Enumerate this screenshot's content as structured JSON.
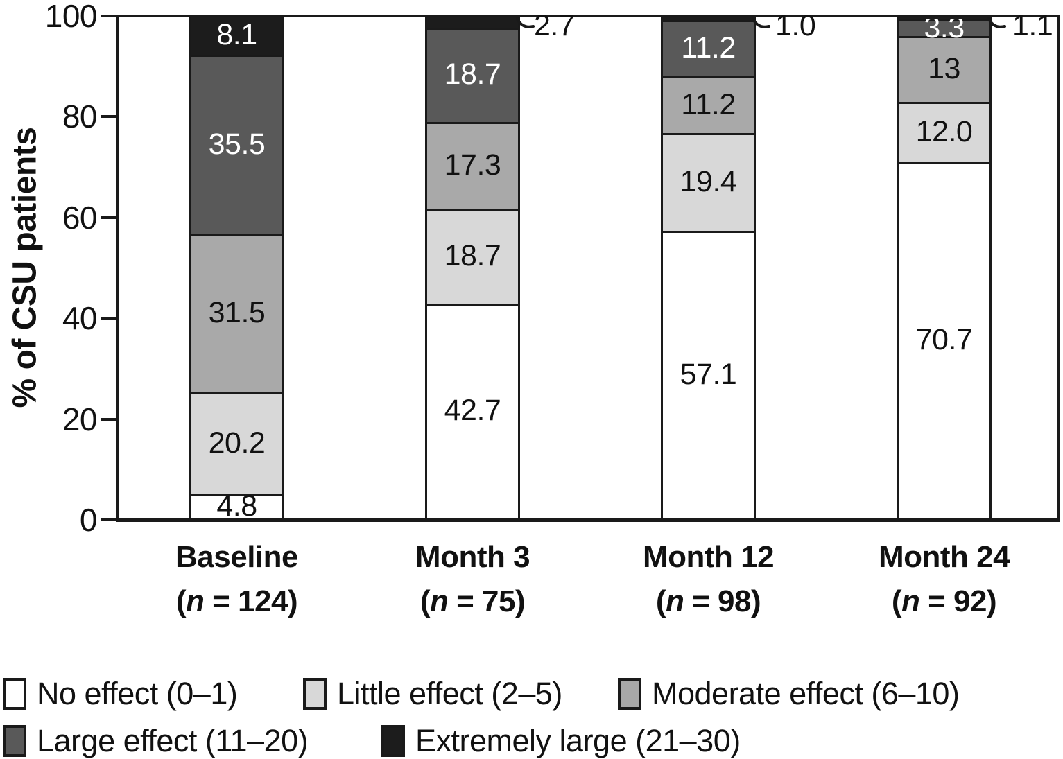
{
  "chart_data": {
    "type": "bar",
    "stacked": true,
    "title": "",
    "xlabel": "",
    "ylabel": "% of CSU patients",
    "ylim": [
      0,
      100
    ],
    "yticks": [
      "0",
      "20",
      "40",
      "60",
      "80",
      "100"
    ],
    "grid": false,
    "legend_position": "bottom-left-two-rows",
    "categories": [
      {
        "label": "Baseline",
        "n": "124"
      },
      {
        "label": "Month 3",
        "n": "75"
      },
      {
        "label": "Month 12",
        "n": "98"
      },
      {
        "label": "Month 24",
        "n": "92"
      }
    ],
    "series": [
      {
        "name": "No effect (0–1)",
        "color": "#ffffff",
        "label_color": "#111111",
        "values": [
          4.8,
          42.7,
          57.1,
          70.7
        ],
        "labels": [
          "4.8",
          "42.7",
          "57.1",
          "70.7"
        ],
        "label_outside": [
          false,
          false,
          false,
          false
        ]
      },
      {
        "name": "Little effect (2–5)",
        "color": "#d8d8d8",
        "label_color": "#111111",
        "values": [
          20.2,
          18.7,
          19.4,
          12.0
        ],
        "labels": [
          "20.2",
          "18.7",
          "19.4",
          "12.0"
        ],
        "label_outside": [
          false,
          false,
          false,
          false
        ]
      },
      {
        "name": "Moderate effect (6–10)",
        "color": "#a9a9a9",
        "label_color": "#111111",
        "values": [
          31.5,
          17.3,
          11.2,
          13
        ],
        "labels": [
          "31.5",
          "17.3",
          "11.2",
          "13"
        ],
        "label_outside": [
          false,
          false,
          false,
          false
        ]
      },
      {
        "name": "Large effect (11–20)",
        "color": "#595959",
        "label_color": "#ffffff",
        "values": [
          35.5,
          18.7,
          11.2,
          3.3
        ],
        "labels": [
          "35.5",
          "18.7",
          "11.2",
          "3.3"
        ],
        "label_outside": [
          false,
          false,
          false,
          false
        ]
      },
      {
        "name": "Extremely large (21–30)",
        "color": "#1c1c1c",
        "label_color": "#ffffff",
        "values": [
          8.1,
          2.7,
          1.0,
          1.1
        ],
        "labels": [
          "8.1",
          "2.7",
          "1.0",
          "1.1"
        ],
        "label_outside": [
          false,
          true,
          true,
          true
        ]
      }
    ],
    "legend_rows": [
      [
        0,
        1,
        2
      ],
      [
        3,
        4
      ]
    ],
    "line_color": "#1a1a1a"
  }
}
